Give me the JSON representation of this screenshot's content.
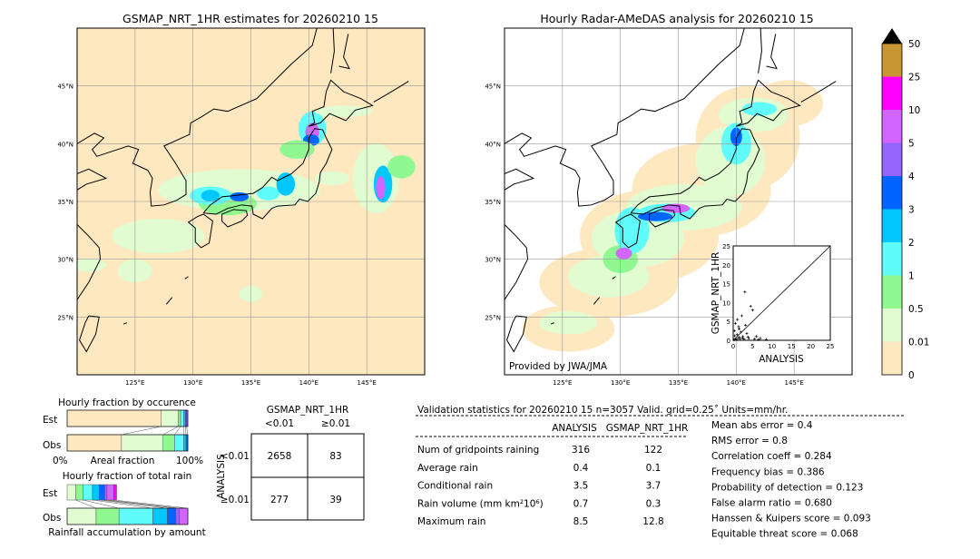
{
  "colors": {
    "levels": [
      "#fee8c0",
      "#e0fcd0",
      "#90f890",
      "#60fcfc",
      "#00c8ff",
      "#0064ff",
      "#9664ff",
      "#d264ff",
      "#ff00ff",
      "#c89632"
    ]
  },
  "chart_data": [
    {
      "type": "map",
      "title": "GSMAP_NRT_1HR estimates for 20260210 15",
      "lon_range": [
        120,
        150
      ],
      "lat_range": [
        20,
        50
      ],
      "xticks": [
        "125°E",
        "130°E",
        "135°E",
        "140°E",
        "145°E"
      ],
      "yticks": [
        "45°N",
        "40°N",
        "35°N",
        "30°N",
        "25°N"
      ],
      "grid": true
    },
    {
      "type": "map",
      "title": "Hourly Radar-AMeDAS analysis for 20260210 15",
      "lon_range": [
        120,
        150
      ],
      "lat_range": [
        20,
        50
      ],
      "xticks": [
        "125°E",
        "130°E",
        "135°E",
        "140°E",
        "145°E"
      ],
      "yticks": [
        "45°N",
        "40°N",
        "35°N",
        "30°N",
        "25°N"
      ],
      "grid": true,
      "annotation": "Provided by JWA/JMA"
    },
    {
      "type": "scatter",
      "xlabel": "ANALYSIS",
      "ylabel": "GSMAP_NRT_1HR",
      "xlim": [
        0,
        25
      ],
      "ylim": [
        0,
        25
      ],
      "ticks": [
        "0",
        "5",
        "10",
        "15",
        "20",
        "25"
      ],
      "points": [
        [
          0.2,
          0.1
        ],
        [
          0.5,
          0.3
        ],
        [
          0.8,
          0.2
        ],
        [
          1.0,
          1.5
        ],
        [
          1.2,
          0.5
        ],
        [
          1.5,
          3.0
        ],
        [
          1.8,
          0.4
        ],
        [
          2.0,
          2.2
        ],
        [
          2.2,
          6.5
        ],
        [
          2.5,
          1.0
        ],
        [
          2.8,
          0.3
        ],
        [
          3.0,
          12.8
        ],
        [
          3.2,
          4.0
        ],
        [
          3.5,
          1.8
        ],
        [
          4.0,
          0.5
        ],
        [
          4.5,
          9.0
        ],
        [
          5.0,
          8.0
        ],
        [
          5.5,
          0.3
        ],
        [
          6.0,
          1.0
        ],
        [
          6.5,
          0.2
        ],
        [
          7.0,
          0.5
        ],
        [
          8.5,
          0.2
        ],
        [
          0.3,
          2.5
        ],
        [
          0.6,
          4.5
        ],
        [
          1.1,
          5.5
        ],
        [
          1.4,
          3.6
        ],
        [
          0.4,
          1.2
        ],
        [
          2.4,
          0.6
        ],
        [
          3.8,
          0.9
        ],
        [
          1.6,
          0.8
        ]
      ]
    },
    {
      "type": "colorbar",
      "ticks": [
        "0",
        "0.01",
        "0.5",
        "1",
        "2",
        "3",
        "4",
        "5",
        "10",
        "25",
        "50"
      ]
    },
    {
      "type": "bar",
      "title": "Hourly fraction by occurence",
      "xlabel": "Areal fraction",
      "xtick_left": "0%",
      "xtick_right": "100%",
      "categories": [
        "Est",
        "Obs"
      ],
      "est": [
        0.78,
        0.14,
        0.02,
        0.025,
        0.015,
        0.01,
        0.01
      ],
      "obs": [
        0.45,
        0.345,
        0.095,
        0.075,
        0.02,
        0.015
      ]
    },
    {
      "type": "bar",
      "title": "Hourly fraction of total rain",
      "xlabel": "Rainfall accumulation by amount",
      "categories": [
        "Est",
        "Obs"
      ],
      "est": [
        0.07,
        0.06,
        0.08,
        0.055,
        0.045,
        0.02,
        0.055,
        0.025
      ],
      "obs": [
        0.24,
        0.19,
        0.28,
        0.12,
        0.07,
        0.03,
        0.07
      ]
    }
  ],
  "contingency": {
    "title": "GSMAP_NRT_1HR",
    "col_labels": [
      "<0.01",
      "≥0.01"
    ],
    "row_title": "ANALYSIS",
    "row_labels": [
      "<0.01",
      "≥0.01"
    ],
    "cells": [
      [
        "2658",
        "83"
      ],
      [
        "277",
        "39"
      ]
    ]
  },
  "stats": {
    "title": "Validation statistics for 20260210 15  n=3057 Valid. grid=0.25˚ Units=mm/hr.",
    "headers": [
      "ANALYSIS",
      "GSMAP_NRT_1HR"
    ],
    "rows": [
      {
        "label": "Num of gridpoints raining",
        "a": "316",
        "g": "122"
      },
      {
        "label": "Average rain",
        "a": "0.4",
        "g": "0.1"
      },
      {
        "label": "Conditional rain",
        "a": "3.5",
        "g": "3.7"
      },
      {
        "label": "Rain volume (mm km²10⁶)",
        "a": "0.7",
        "g": "0.3"
      },
      {
        "label": "Maximum rain",
        "a": "8.5",
        "g": "12.8"
      }
    ],
    "scores": [
      "Mean abs error =    0.4",
      "RMS error =    0.8",
      "Correlation coeff =  0.284",
      "Frequency bias =  0.386",
      "Probability of detection =  0.123",
      "False alarm ratio =  0.680",
      "Hanssen & Kuipers score =  0.093",
      "Equitable threat score =  0.068"
    ]
  }
}
